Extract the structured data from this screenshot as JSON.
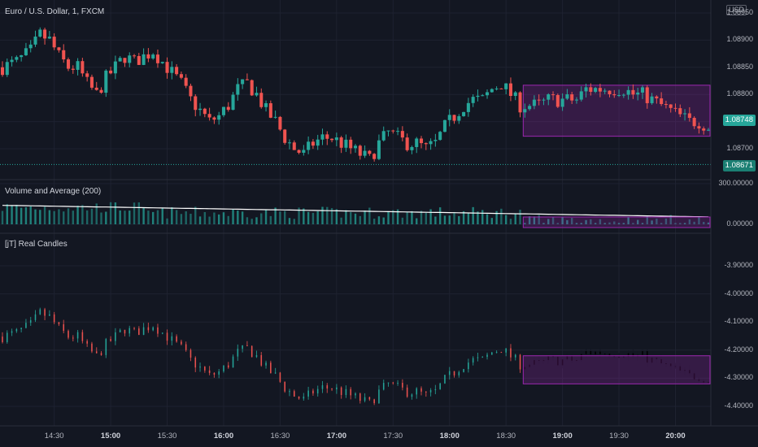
{
  "header": {
    "title": "Euro / U.S. Dollar, 1, FXCM",
    "currency": "USD"
  },
  "badges": {
    "last_price": "1.08748",
    "level_price": "1.08671",
    "last_color": "#26a69a"
  },
  "colors": {
    "up": "#26a69a",
    "down": "#ef5350",
    "box_stroke": "#9c27b0",
    "box_fill": "rgba(156,39,176,0.25)",
    "ma": "#ffffff",
    "grid": "#1e2230"
  },
  "panes": {
    "volume_title": "Volume and Average (200)",
    "real_title": "[jT] Real Candles"
  },
  "chart_data": [
    {
      "type": "candlestick",
      "title": "Euro / U.S. Dollar, 1, FXCM",
      "ylabel": "USD",
      "x_ticks": [
        "14:30",
        "15:00",
        "15:30",
        "16:00",
        "16:30",
        "17:00",
        "17:30",
        "18:00",
        "18:30",
        "19:00",
        "19:30",
        "20:00"
      ],
      "x_ticks_bold": [
        "15:00",
        "16:00",
        "17:00",
        "18:00",
        "19:00",
        "20:00"
      ],
      "y_ticks": [
        "1.08950",
        "1.08900",
        "1.08850",
        "1.08800",
        "1.08750",
        "1.08700"
      ],
      "ylim": [
        1.0865,
        1.0896
      ],
      "last_price": 1.08748,
      "horizontal_level": 1.08671,
      "close_path": [
        [
          0,
          1.0885
        ],
        [
          3,
          1.0886
        ],
        [
          6,
          1.0888
        ],
        [
          8,
          1.0891
        ],
        [
          10,
          1.089
        ],
        [
          12,
          1.0887
        ],
        [
          14,
          1.0885
        ],
        [
          16,
          1.0885
        ],
        [
          18,
          1.0882
        ],
        [
          20,
          1.088
        ],
        [
          22,
          1.0883
        ],
        [
          24,
          1.0885
        ],
        [
          26,
          1.0887
        ],
        [
          28,
          1.0886
        ],
        [
          30,
          1.0887
        ],
        [
          32,
          1.0888
        ],
        [
          34,
          1.0886
        ],
        [
          36,
          1.0884
        ],
        [
          38,
          1.0882
        ],
        [
          40,
          1.0879
        ],
        [
          42,
          1.0877
        ],
        [
          44,
          1.0875
        ],
        [
          46,
          1.0876
        ],
        [
          48,
          1.0878
        ],
        [
          50,
          1.0881
        ],
        [
          52,
          1.0882
        ],
        [
          54,
          1.088
        ],
        [
          56,
          1.0877
        ],
        [
          58,
          1.0875
        ],
        [
          60,
          1.0872
        ],
        [
          62,
          1.087
        ],
        [
          64,
          1.0869
        ],
        [
          66,
          1.0871
        ],
        [
          68,
          1.0872
        ],
        [
          70,
          1.0872
        ],
        [
          72,
          1.0871
        ],
        [
          74,
          1.087
        ],
        [
          76,
          1.0869
        ],
        [
          78,
          1.0868
        ],
        [
          80,
          1.0871
        ],
        [
          82,
          1.0873
        ],
        [
          84,
          1.0872
        ],
        [
          86,
          1.0871
        ],
        [
          88,
          1.0871
        ],
        [
          90,
          1.087
        ],
        [
          92,
          1.0871
        ],
        [
          94,
          1.0874
        ],
        [
          96,
          1.0876
        ],
        [
          98,
          1.0878
        ],
        [
          100,
          1.0879
        ],
        [
          102,
          1.0879
        ],
        [
          104,
          1.0881
        ],
        [
          106,
          1.0882
        ],
        [
          108,
          1.088
        ],
        [
          110,
          1.0878
        ],
        [
          112,
          1.0878
        ],
        [
          114,
          1.0878
        ],
        [
          116,
          1.0879
        ],
        [
          118,
          1.0879
        ],
        [
          120,
          1.0879
        ],
        [
          122,
          1.0879
        ],
        [
          124,
          1.0881
        ],
        [
          126,
          1.0881
        ],
        [
          128,
          1.0881
        ],
        [
          130,
          1.0881
        ],
        [
          132,
          1.0881
        ],
        [
          134,
          1.088
        ],
        [
          136,
          1.088
        ],
        [
          138,
          1.0879
        ],
        [
          140,
          1.0878
        ],
        [
          142,
          1.0877
        ],
        [
          144,
          1.0876
        ],
        [
          146,
          1.0875
        ],
        [
          148,
          1.0875
        ],
        [
          150,
          1.0874
        ]
      ],
      "highlight": {
        "x_start": 111,
        "x_end": 150,
        "y_low": 1.08723,
        "y_high": 1.08817
      }
    },
    {
      "type": "bar",
      "title": "Volume and Average (200)",
      "y_ticks": [
        "300.00000",
        "0.00000"
      ],
      "ylim": [
        0,
        300
      ],
      "moving_average_start": 140,
      "moving_average_end": 55
    },
    {
      "type": "candlestick",
      "title": "[jT] Real Candles",
      "y_ticks": [
        "-3.90000",
        "-4.00000",
        "-4.10000",
        "-4.20000",
        "-4.30000",
        "-4.40000"
      ],
      "ylim": [
        -4.445,
        -3.86
      ]
    }
  ]
}
